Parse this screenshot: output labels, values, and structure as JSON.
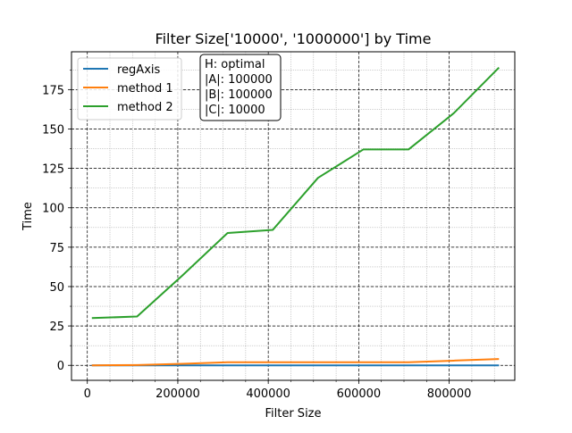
{
  "chart_data": {
    "type": "line",
    "title": "Filter Size['10000', '1000000'] by Time",
    "xlabel": "Filter Size",
    "ylabel": "Time",
    "xlim": [
      -35000,
      945000
    ],
    "ylim": [
      -9.5,
      199
    ],
    "xticks": [
      0,
      200000,
      400000,
      600000,
      800000
    ],
    "xtick_labels": [
      "0",
      "200000",
      "400000",
      "600000",
      "800000"
    ],
    "yticks": [
      0,
      25,
      50,
      75,
      100,
      125,
      150,
      175
    ],
    "ytick_labels": [
      "0",
      "25",
      "50",
      "75",
      "100",
      "125",
      "150",
      "175"
    ],
    "grid": true,
    "legend_position": "top-left",
    "x": [
      10000,
      110000,
      210000,
      310000,
      410000,
      510000,
      610000,
      710000,
      810000,
      910000
    ],
    "series": [
      {
        "name": "regAxis",
        "color": "#1f77b4",
        "values": [
          0,
          0,
          0,
          0,
          0,
          0,
          0,
          0,
          0,
          0
        ]
      },
      {
        "name": "method 1",
        "color": "#ff7f0e",
        "values": [
          0,
          0.2,
          1.0,
          2.0,
          2.0,
          2.0,
          2.0,
          2.0,
          3.0,
          4.0
        ]
      },
      {
        "name": "method 2",
        "color": "#2ca02c",
        "values": [
          30,
          31,
          57,
          84,
          86,
          119,
          137,
          137,
          160,
          189
        ]
      }
    ],
    "annotation": [
      "H: optimal",
      "|A|: 100000",
      "|B|: 100000",
      "|C|: 10000"
    ]
  }
}
